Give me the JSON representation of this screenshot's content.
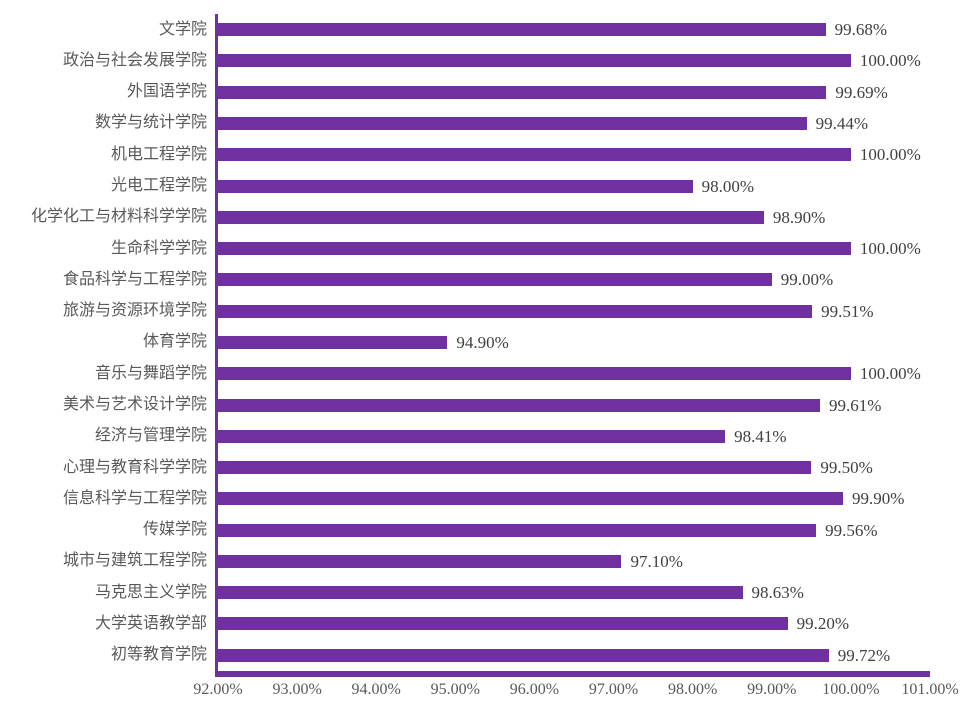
{
  "chart_data": {
    "type": "bar",
    "orientation": "horizontal",
    "title": "",
    "xlabel": "",
    "ylabel": "",
    "categories": [
      "文学院",
      "政治与社会发展学院",
      "外国语学院",
      "数学与统计学院",
      "机电工程学院",
      "光电工程学院",
      "化学化工与材料科学学院",
      "生命科学学院",
      "食品科学与工程学院",
      "旅游与资源环境学院",
      "体育学院",
      "音乐与舞蹈学院",
      "美术与艺术设计学院",
      "经济与管理学院",
      "心理与教育科学学院",
      "信息科学与工程学院",
      "传媒学院",
      "城市与建筑工程学院",
      "马克思主义学院",
      "大学英语教学部",
      "初等教育学院"
    ],
    "values": [
      99.68,
      100.0,
      99.69,
      99.44,
      100.0,
      98.0,
      98.9,
      100.0,
      99.0,
      99.51,
      94.9,
      100.0,
      99.61,
      98.41,
      99.5,
      99.9,
      99.56,
      97.1,
      98.63,
      99.2,
      99.72
    ],
    "value_labels": [
      "99.68%",
      "100.00%",
      "99.69%",
      "99.44%",
      "100.00%",
      "98.00%",
      "98.90%",
      "100.00%",
      "99.00%",
      "99.51%",
      "94.90%",
      "100.00%",
      "99.61%",
      "98.41%",
      "99.50%",
      "99.90%",
      "99.56%",
      "97.10%",
      "98.63%",
      "99.20%",
      "99.72%"
    ],
    "xlim": [
      92,
      101
    ],
    "x_tick_step": 1,
    "x_ticks": [
      "92.00%",
      "93.00%",
      "94.00%",
      "95.00%",
      "96.00%",
      "97.00%",
      "98.00%",
      "99.00%",
      "100.00%",
      "101.00%"
    ],
    "grid": false,
    "legend": false,
    "colors": {
      "bar": "#7030A0",
      "axis_line": "#7030A0",
      "category_label": "#595959",
      "value_label": "#404040",
      "tick_label": "#595959",
      "background": "#FFFFFF"
    }
  }
}
